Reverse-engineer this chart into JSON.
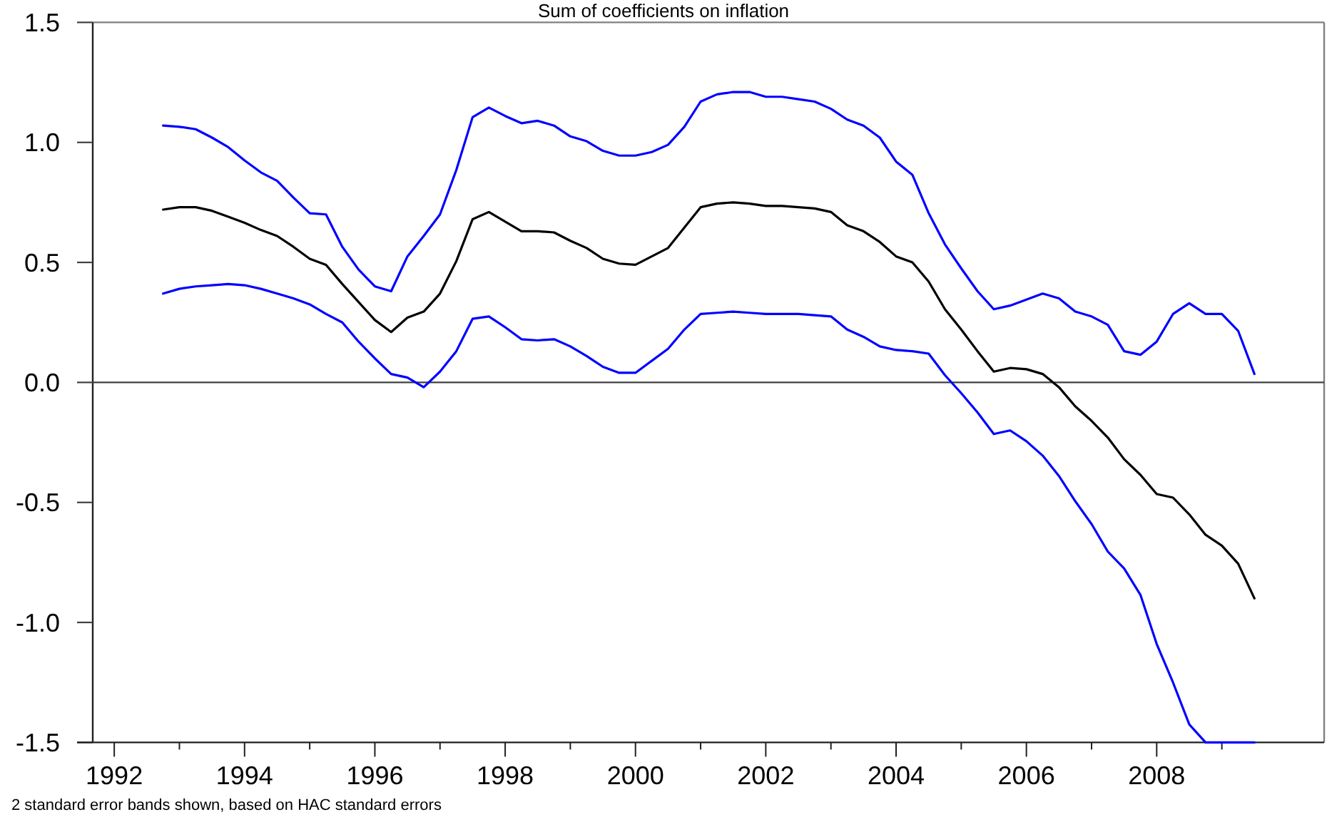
{
  "chart_data": {
    "type": "line",
    "title": "Sum of coefficients on inflation",
    "annotations": [
      "2 standard error bands shown, based on HAC standard errors"
    ],
    "x": [
      1992.75,
      1993,
      1993.25,
      1993.5,
      1993.75,
      1994,
      1994.25,
      1994.5,
      1994.75,
      1995,
      1995.25,
      1995.5,
      1995.75,
      1996,
      1996.25,
      1996.5,
      1996.75,
      1997,
      1997.25,
      1997.5,
      1997.75,
      1998,
      1998.25,
      1998.5,
      1998.75,
      1999,
      1999.25,
      1999.5,
      1999.75,
      2000,
      2000.25,
      2000.5,
      2000.75,
      2001,
      2001.25,
      2001.5,
      2001.75,
      2002,
      2002.25,
      2002.5,
      2002.75,
      2003,
      2003.25,
      2003.5,
      2003.75,
      2004,
      2004.25,
      2004.5,
      2004.75,
      2005,
      2005.25,
      2005.5,
      2005.75,
      2006,
      2006.25,
      2006.5,
      2006.75,
      2007,
      2007.25,
      2007.5,
      2007.75,
      2008,
      2008.25,
      2008.5,
      2008.75,
      2009,
      2009.25,
      2009.5
    ],
    "series": [
      {
        "color": "#0000ff",
        "values": [
          1.07,
          1.065,
          1.055,
          1.02,
          0.98,
          0.925,
          0.875,
          0.84,
          0.77,
          0.705,
          0.7,
          0.565,
          0.47,
          0.4,
          0.38,
          0.525,
          0.61,
          0.7,
          0.885,
          1.105,
          1.145,
          1.11,
          1.08,
          1.09,
          1.07,
          1.025,
          1.005,
          0.965,
          0.945,
          0.945,
          0.96,
          0.99,
          1.065,
          1.17,
          1.2,
          1.21,
          1.21,
          1.19,
          1.19,
          1.18,
          1.17,
          1.14,
          1.095,
          1.07,
          1.02,
          0.92,
          0.865,
          0.705,
          0.575,
          0.475,
          0.38,
          0.305,
          0.32,
          0.345,
          0.37,
          0.35,
          0.295,
          0.275,
          0.24,
          0.13,
          0.115,
          0.17,
          0.285,
          0.33,
          0.285,
          0.285,
          0.215,
          0.035
        ]
      },
      {
        "color": "#000000",
        "values": [
          0.72,
          0.73,
          0.73,
          0.715,
          0.69,
          0.665,
          0.635,
          0.61,
          0.565,
          0.515,
          0.49,
          0.41,
          0.335,
          0.26,
          0.21,
          0.27,
          0.295,
          0.37,
          0.505,
          0.68,
          0.71,
          0.67,
          0.63,
          0.63,
          0.625,
          0.59,
          0.56,
          0.515,
          0.495,
          0.49,
          0.525,
          0.56,
          0.645,
          0.73,
          0.745,
          0.75,
          0.745,
          0.735,
          0.735,
          0.73,
          0.725,
          0.71,
          0.655,
          0.63,
          0.585,
          0.525,
          0.5,
          0.42,
          0.305,
          0.22,
          0.13,
          0.045,
          0.06,
          0.055,
          0.035,
          -0.02,
          -0.1,
          -0.16,
          -0.23,
          -0.32,
          -0.385,
          -0.465,
          -0.48,
          -0.55,
          -0.635,
          -0.68,
          -0.755,
          -0.9
        ]
      },
      {
        "color": "#0000ff",
        "values": [
          0.37,
          0.39,
          0.4,
          0.405,
          0.41,
          0.405,
          0.39,
          0.37,
          0.35,
          0.325,
          0.285,
          0.25,
          0.17,
          0.1,
          0.035,
          0.02,
          -0.02,
          0.045,
          0.13,
          0.265,
          0.275,
          0.23,
          0.18,
          0.175,
          0.18,
          0.15,
          0.11,
          0.065,
          0.04,
          0.04,
          0.09,
          0.14,
          0.22,
          0.285,
          0.29,
          0.295,
          0.29,
          0.285,
          0.285,
          0.285,
          0.28,
          0.275,
          0.22,
          0.19,
          0.15,
          0.135,
          0.13,
          0.12,
          0.03,
          -0.045,
          -0.125,
          -0.215,
          -0.2,
          -0.245,
          -0.305,
          -0.39,
          -0.495,
          -0.59,
          -0.705,
          -0.775,
          -0.885,
          -1.09,
          -1.25,
          -1.425,
          -1.5,
          -1.5,
          -1.5,
          -1.5
        ]
      }
    ],
    "xlim": [
      1991.67,
      2010.57
    ],
    "xticks": [
      1992,
      {
        "value": 1993,
        "label": null
      },
      1994,
      {
        "value": 1995,
        "label": null
      },
      1996,
      {
        "value": 1997,
        "label": null
      },
      1998,
      {
        "value": 1999,
        "label": null
      },
      2000,
      {
        "value": 2001,
        "label": null
      },
      2002,
      {
        "value": 2003,
        "label": null
      },
      2004,
      {
        "value": 2005,
        "label": null
      },
      2006,
      {
        "value": 2007,
        "label": null
      },
      2008,
      {
        "value": 2009,
        "label": null
      }
    ],
    "ylim": [
      -1.5,
      1.5
    ],
    "yticks": [
      -1.5,
      {
        "value": -1,
        "label": "-1.0"
      },
      -0.5,
      {
        "value": 0,
        "label": "0.0"
      },
      0.5,
      {
        "value": 1,
        "label": "1.0"
      },
      1.5
    ],
    "ref_lines": [
      {
        "axis": "y",
        "value": 0,
        "color": "#404040"
      }
    ]
  }
}
